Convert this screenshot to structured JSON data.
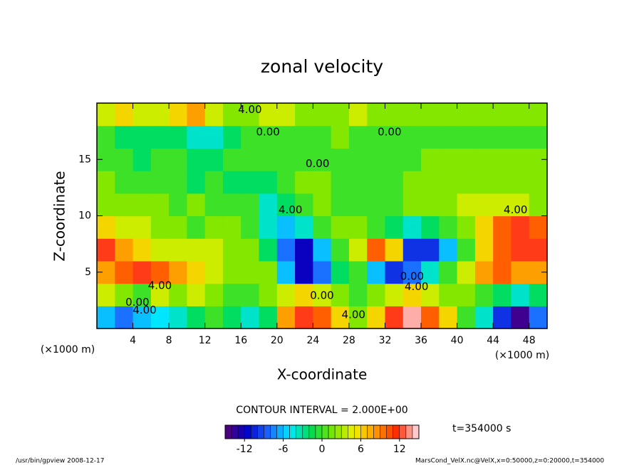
{
  "chart_data": {
    "type": "heatmap",
    "title": "zonal velocity",
    "x_label": "X-coordinate",
    "y_label": "Z-coordinate",
    "x_unit": "(×1000 m)",
    "x_unit_right": "(×1000 m)",
    "xlim": [
      0,
      50
    ],
    "ylim": [
      0,
      20
    ],
    "xticks": [
      4,
      8,
      12,
      16,
      20,
      24,
      28,
      32,
      36,
      40,
      44,
      48
    ],
    "yticks": [
      5,
      10,
      15
    ],
    "z": [
      [
        -6,
        -8,
        -6,
        -5,
        -4,
        -2,
        0,
        -2,
        -4,
        -2,
        8,
        12,
        10,
        6,
        2,
        6,
        12,
        14,
        10,
        6,
        0,
        -4,
        -10,
        -14,
        -8
      ],
      [
        4,
        2,
        0,
        4,
        2,
        4,
        2,
        0,
        0,
        2,
        4,
        6,
        4,
        2,
        0,
        2,
        4,
        6,
        4,
        2,
        2,
        0,
        -2,
        -4,
        -2
      ],
      [
        8,
        10,
        12,
        10,
        8,
        6,
        4,
        2,
        2,
        2,
        -6,
        -12,
        -8,
        -2,
        0,
        -6,
        -10,
        -8,
        -4,
        0,
        4,
        8,
        10,
        8,
        8
      ],
      [
        12,
        8,
        6,
        4,
        4,
        4,
        4,
        2,
        2,
        -2,
        -8,
        -12,
        -6,
        0,
        4,
        10,
        6,
        -10,
        -10,
        -6,
        0,
        6,
        10,
        12,
        12
      ],
      [
        6,
        4,
        4,
        2,
        2,
        0,
        2,
        2,
        0,
        -4,
        -6,
        -4,
        0,
        2,
        2,
        0,
        -2,
        -4,
        -2,
        0,
        2,
        6,
        10,
        12,
        10
      ],
      [
        2,
        2,
        2,
        2,
        0,
        2,
        0,
        0,
        0,
        -4,
        -2,
        0,
        2,
        0,
        0,
        0,
        0,
        2,
        2,
        2,
        4,
        4,
        4,
        4,
        2
      ],
      [
        2,
        0,
        0,
        0,
        0,
        -2,
        0,
        -2,
        -2,
        -2,
        0,
        2,
        2,
        0,
        0,
        0,
        0,
        2,
        2,
        2,
        2,
        2,
        2,
        2,
        2
      ],
      [
        0,
        0,
        -2,
        0,
        0,
        -2,
        -2,
        0,
        0,
        0,
        0,
        0,
        0,
        0,
        0,
        0,
        0,
        0,
        2,
        2,
        2,
        2,
        2,
        2,
        2
      ],
      [
        0,
        -2,
        -2,
        -2,
        -2,
        -4,
        -4,
        -2,
        0,
        0,
        0,
        0,
        0,
        2,
        0,
        0,
        0,
        0,
        0,
        0,
        0,
        0,
        0,
        0,
        0
      ],
      [
        4,
        6,
        4,
        4,
        6,
        8,
        4,
        2,
        2,
        4,
        4,
        2,
        2,
        2,
        4,
        2,
        2,
        2,
        2,
        2,
        2,
        2,
        2,
        2,
        2
      ]
    ],
    "colormap": [
      "#5a0078",
      "#0000c8",
      "#1e64ff",
      "#00e6ff",
      "#00dc50",
      "#78e600",
      "#f0f000",
      "#ff9600",
      "#ff2800",
      "#ffe6f0"
    ],
    "clim": [
      -15,
      15
    ],
    "colorbar_ticks": [
      -12,
      -6,
      0,
      6,
      12
    ],
    "contour_labels": [
      "4.00",
      "0.00",
      "0.00",
      "0.00",
      "4.00",
      "4.00",
      "0.00",
      "4.00",
      "4.00",
      "0.00",
      "4.00",
      "0.00",
      "4.00"
    ],
    "contour_interval": "CONTOUR INTERVAL = 2.000E+00",
    "time_label": "t=354000 s",
    "footer_left": "/usr/bin/gpview  2008-12-17",
    "footer_right": "MarsCond_VelX.nc@VelX,x=0:50000,z=0:20000,t=354000"
  }
}
